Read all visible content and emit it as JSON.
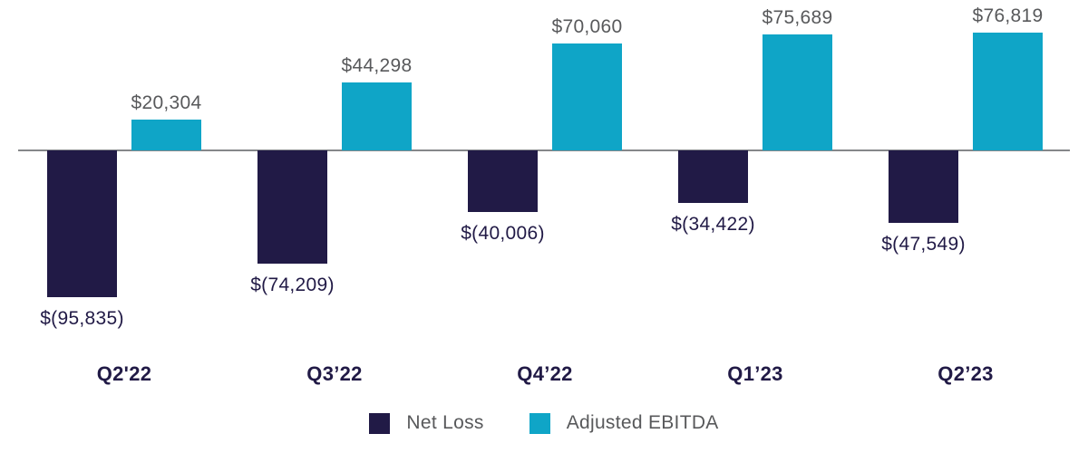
{
  "chart_data": {
    "type": "bar",
    "title": "",
    "xlabel": "",
    "ylabel": "",
    "categories": [
      "Q2'22",
      "Q3’22",
      "Q4’22",
      "Q1’23",
      "Q2’23"
    ],
    "series": [
      {
        "name": "Net Loss",
        "color": "#211A46",
        "values": [
          -95835,
          -74209,
          -40006,
          -34422,
          -47549
        ],
        "labels": [
          "$(95,835)",
          "$(74,209)",
          "$(40,006)",
          "$(34,422)",
          "$(47,549)"
        ]
      },
      {
        "name": "Adjusted EBITDA",
        "color": "#0FA5C7",
        "values": [
          20304,
          44298,
          70060,
          75689,
          76819
        ],
        "labels": [
          "$20,304",
          "$44,298",
          "$70,060",
          "$75,689",
          "$76,819"
        ]
      }
    ],
    "ylim": [
      -100000,
      85000
    ],
    "grid": false,
    "baseline": 0,
    "legend_position": "bottom"
  },
  "colors": {
    "net_loss": "#211A46",
    "adjusted_ebitda": "#0FA5C7",
    "positive_value_label": "#58595B",
    "negative_value_label": "#211A46",
    "category_label": "#211A46",
    "legend_text": "#58595B",
    "axis_line": "#85878A",
    "background": "#FFFFFF"
  }
}
